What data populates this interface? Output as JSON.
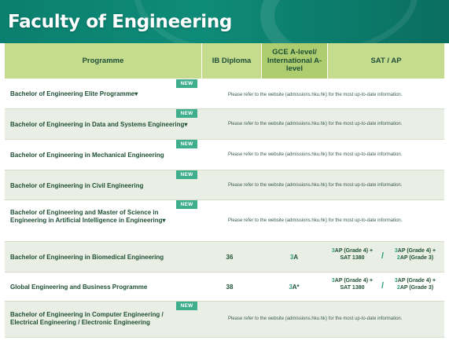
{
  "banner": {
    "title": "Faculty of Engineering"
  },
  "table": {
    "headers": {
      "programme": "Programme",
      "ib": "IB Diploma",
      "gce": "GCE A-level/ International A-level",
      "sat": "SAT / AP"
    },
    "new_label": "NEW",
    "note": "Please refer to the website (admissions.hku.hk) for the most up-to-date information.",
    "rows": [
      {
        "programme": "Bachelor of Engineering Elite Programme▾",
        "is_new": true
      },
      {
        "programme": "Bachelor of Engineering in Data and Systems Engineering▾",
        "is_new": true
      },
      {
        "programme": "Bachelor of Engineering in Mechanical Engineering",
        "is_new": true
      },
      {
        "programme": "Bachelor of Engineering in Civil Engineering",
        "is_new": true
      },
      {
        "programme": "Bachelor of Engineering and Master of Science in Engineering in Artificial Intelligence in Engineering▾",
        "is_new": true
      },
      {
        "programme": "Bachelor of Engineering in Biomedical Engineering",
        "is_new": false,
        "ib": "36",
        "gce_num": "3",
        "gce_grade": "A",
        "sat_left_num": "3",
        "sat_left_rest": "AP (Grade 4) +",
        "sat_left_line2": "SAT 1380",
        "sat_right_num1": "3",
        "sat_right_rest1": "AP (Grade 4) +",
        "sat_right_num2": "2",
        "sat_right_rest2": "AP (Grade 3)"
      },
      {
        "programme": "Global Engineering and Business Programme",
        "is_new": false,
        "ib": "38",
        "gce_num": "3",
        "gce_grade": "A*",
        "sat_left_num": "3",
        "sat_left_rest": "AP (Grade 4) +",
        "sat_left_line2": "SAT 1380",
        "sat_right_num1": "3",
        "sat_right_rest1": "AP (Grade 4) +",
        "sat_right_num2": "2",
        "sat_right_rest2": "AP (Grade 3)"
      },
      {
        "programme": "Bachelor of Engineering in Computer Engineering / Electrical Engineering / Electronic Engineering",
        "is_new": true
      }
    ]
  },
  "colors": {
    "banner": "#0b7f6f",
    "header": "#c5db8e",
    "new_badge": "#3fae8c",
    "accent_text": "#2e9b78"
  }
}
